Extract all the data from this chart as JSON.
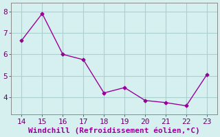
{
  "x": [
    14,
    15,
    16,
    17,
    18,
    19,
    20,
    21,
    22,
    23
  ],
  "y": [
    6.65,
    7.9,
    6.0,
    5.75,
    4.2,
    4.45,
    3.85,
    3.75,
    3.6,
    5.05
  ],
  "line_color": "#990099",
  "marker": "D",
  "marker_size": 2.5,
  "line_width": 1.0,
  "xlabel": "Windchill (Refroidissement éolien,°C)",
  "xlim": [
    13.5,
    23.5
  ],
  "ylim": [
    3.2,
    8.4
  ],
  "xticks": [
    14,
    15,
    16,
    17,
    18,
    19,
    20,
    21,
    22,
    23
  ],
  "yticks": [
    4,
    5,
    6,
    7,
    8
  ],
  "background_color": "#d6f0f0",
  "plot_bg_color": "#d6f0f0",
  "grid_color": "#aacfcf",
  "spine_color": "#888888",
  "tick_label_color": "#660066",
  "xlabel_color": "#990099",
  "xlabel_fontsize": 8,
  "tick_fontsize": 8
}
